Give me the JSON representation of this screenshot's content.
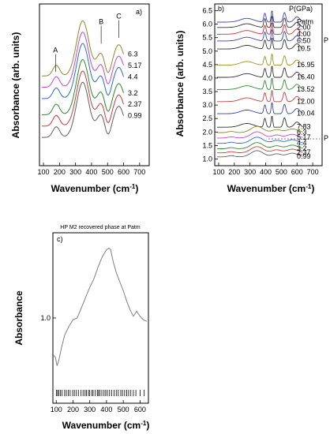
{
  "chart_data": [
    {
      "panel": "a)",
      "type": "line",
      "ylabel": "Absorbance (arb. units)",
      "xlabel": "Wavenumber (cm",
      "xlabel_sup": "-1",
      "xlabel_close": ")",
      "xlim": [
        75,
        760
      ],
      "ylim": [
        0,
        1
      ],
      "xticks": [
        100,
        200,
        300,
        400,
        500,
        600,
        700
      ],
      "yticks_shown": false,
      "peak_labels": [
        {
          "text": "A",
          "x": 175,
          "y": 0.7
        },
        {
          "text": "B",
          "x": 460,
          "y": 0.875
        },
        {
          "text": "C",
          "x": 570,
          "y": 0.91
        }
      ],
      "series": [
        {
          "name": "6.3",
          "color": "#8a8a2a",
          "offset": 0.5
        },
        {
          "name": "5.17",
          "color": "#cc44cc",
          "offset": 0.42
        },
        {
          "name": "4.4",
          "color": "#2a6ad0",
          "offset": 0.34
        },
        {
          "name": "3.2",
          "color": "#2a8a2a",
          "offset": 0.23
        },
        {
          "name": "2.37",
          "color": "#d03a3a",
          "offset": 0.15
        },
        {
          "name": "0.99",
          "color": "#606060",
          "offset": 0.07
        }
      ]
    },
    {
      "panel": "b)",
      "type": "line",
      "legend_title": "P(GPa)",
      "ylabel": "Absorbance (arb. units)",
      "xlabel": "Wavenumber (cm",
      "xlabel_sup": "-1",
      "xlabel_close": ")",
      "xlim": [
        75,
        760
      ],
      "ylim": [
        0.75,
        6.75
      ],
      "xticks": [
        100,
        200,
        300,
        400,
        500,
        600,
        700
      ],
      "yticks": [
        1.0,
        1.5,
        2.0,
        2.5,
        3.0,
        3.5,
        4.0,
        4.5,
        5.0,
        5.5,
        6.0,
        6.5
      ],
      "side_labels": [
        "P",
        "P"
      ],
      "series": [
        {
          "name": "Patm",
          "color": "#4040d0",
          "kind": "high",
          "offset": 6.05
        },
        {
          "name": "2.00",
          "color": "#303030",
          "kind": "high",
          "offset": 5.85
        },
        {
          "name": "4.00",
          "color": "#d03030",
          "kind": "high",
          "offset": 5.6
        },
        {
          "name": "6.50",
          "color": "#3040c0",
          "kind": "high",
          "offset": 5.35
        },
        {
          "name": "10.5",
          "color": "#303030",
          "kind": "high",
          "offset": 5.05
        },
        {
          "name": "16.95",
          "color": "#a09020",
          "kind": "high",
          "offset": 4.45
        },
        {
          "name": "16.40",
          "color": "#303030",
          "kind": "high",
          "offset": 4.0
        },
        {
          "name": "13.52",
          "color": "#2a8a2a",
          "kind": "high",
          "offset": 3.55
        },
        {
          "name": "12.00",
          "color": "#c04040",
          "kind": "high",
          "offset": 3.1
        },
        {
          "name": "10.04",
          "color": "#3040c0",
          "kind": "high",
          "offset": 2.65
        },
        {
          "name": "7.83",
          "color": "#303030",
          "kind": "high",
          "offset": 2.15
        },
        {
          "name": "6.3",
          "color": "#8a8a2a",
          "kind": "low",
          "offset": 1.95
        },
        {
          "name": "5.17",
          "color": "#cc44cc",
          "kind": "low",
          "offset": 1.75
        },
        {
          "name": "4.4",
          "color": "#2a6ad0",
          "kind": "low",
          "offset": 1.55
        },
        {
          "name": "3.2",
          "color": "#2a8a2a",
          "kind": "low",
          "offset": 1.35
        },
        {
          "name": "2.37",
          "color": "#d03a3a",
          "kind": "low",
          "offset": 1.2
        },
        {
          "name": "0.99",
          "color": "#606060",
          "kind": "low",
          "offset": 1.05
        }
      ]
    },
    {
      "panel": "c)",
      "type": "line",
      "title": "HP M2 recovered phase at Patm",
      "ylabel": "Absorbance",
      "xlabel": "Wavenumber (cm",
      "xlabel_sup": "-1",
      "xlabel_close": ")",
      "xlim": [
        80,
        650
      ],
      "ylim": [
        0.5,
        1.5
      ],
      "xticks": [
        100,
        200,
        300,
        400,
        500,
        600
      ],
      "yticks": [
        1.0
      ],
      "series": [
        {
          "color": "#808080",
          "x": [
            85,
            95,
            105,
            115,
            130,
            150,
            175,
            200,
            225,
            250,
            275,
            300,
            325,
            350,
            375,
            400,
            415,
            425,
            440,
            460,
            480,
            500,
            520,
            540,
            560,
            580,
            600,
            620,
            640
          ],
          "y": [
            0.78,
            0.77,
            0.72,
            0.75,
            0.82,
            0.9,
            0.95,
            0.99,
            1.0,
            1.06,
            1.12,
            1.18,
            1.23,
            1.3,
            1.36,
            1.4,
            1.41,
            1.4,
            1.33,
            1.26,
            1.21,
            1.16,
            1.1,
            1.05,
            1.01,
            1.04,
            1.01,
            0.99,
            0.98
          ]
        }
      ],
      "marker_ticks": [
        102,
        108,
        115,
        125,
        135,
        150,
        160,
        172,
        183,
        198,
        208,
        220,
        232,
        248,
        260,
        272,
        280,
        292,
        300,
        312,
        320,
        333,
        345,
        352,
        360,
        372,
        385,
        395,
        405,
        418,
        430,
        445,
        458,
        470,
        485,
        495,
        508,
        520,
        532,
        545,
        560,
        575,
        600,
        625
      ]
    }
  ]
}
